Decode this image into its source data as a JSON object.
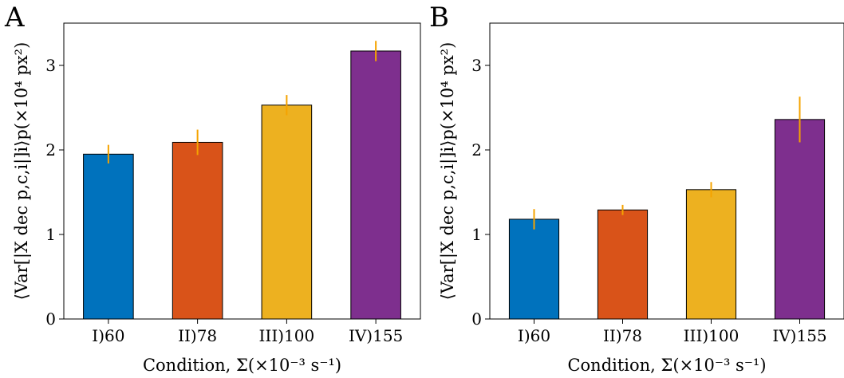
{
  "chart_data": [
    {
      "panel_label": "A",
      "type": "bar",
      "categories": [
        "I)60",
        "II)78",
        "III)100",
        "IV)155"
      ],
      "values": [
        1.95,
        2.09,
        2.53,
        3.17
      ],
      "errors": [
        0.11,
        0.15,
        0.12,
        0.12
      ],
      "bar_colors": [
        "#0072bd",
        "#d95319",
        "#edb120",
        "#7e2f8e"
      ],
      "error_color": "#f5a300",
      "xlabel": "Condition, Σ(×10⁻³ s⁻¹)",
      "ylabel": "⟨Var[|X dec p,c,i|]i⟩p(×10⁴ px²)",
      "ylim": [
        0,
        3.5
      ],
      "yticks": [
        "0",
        "1",
        "2",
        "3"
      ],
      "grid": false
    },
    {
      "panel_label": "B",
      "type": "bar",
      "categories": [
        "I)60",
        "II)78",
        "III)100",
        "IV)155"
      ],
      "values": [
        1.18,
        1.29,
        1.53,
        2.36
      ],
      "errors": [
        0.12,
        0.06,
        0.09,
        0.27
      ],
      "bar_colors": [
        "#0072bd",
        "#d95319",
        "#edb120",
        "#7e2f8e"
      ],
      "error_color": "#f5a300",
      "xlabel": "Condition, Σ(×10⁻³ s⁻¹)",
      "ylabel": "⟨Var[|X dec p,c,i|]i⟩p(×10⁴ px²)",
      "ylim": [
        0,
        3.5
      ],
      "yticks": [
        "0",
        "1",
        "2",
        "3"
      ],
      "grid": false
    }
  ]
}
